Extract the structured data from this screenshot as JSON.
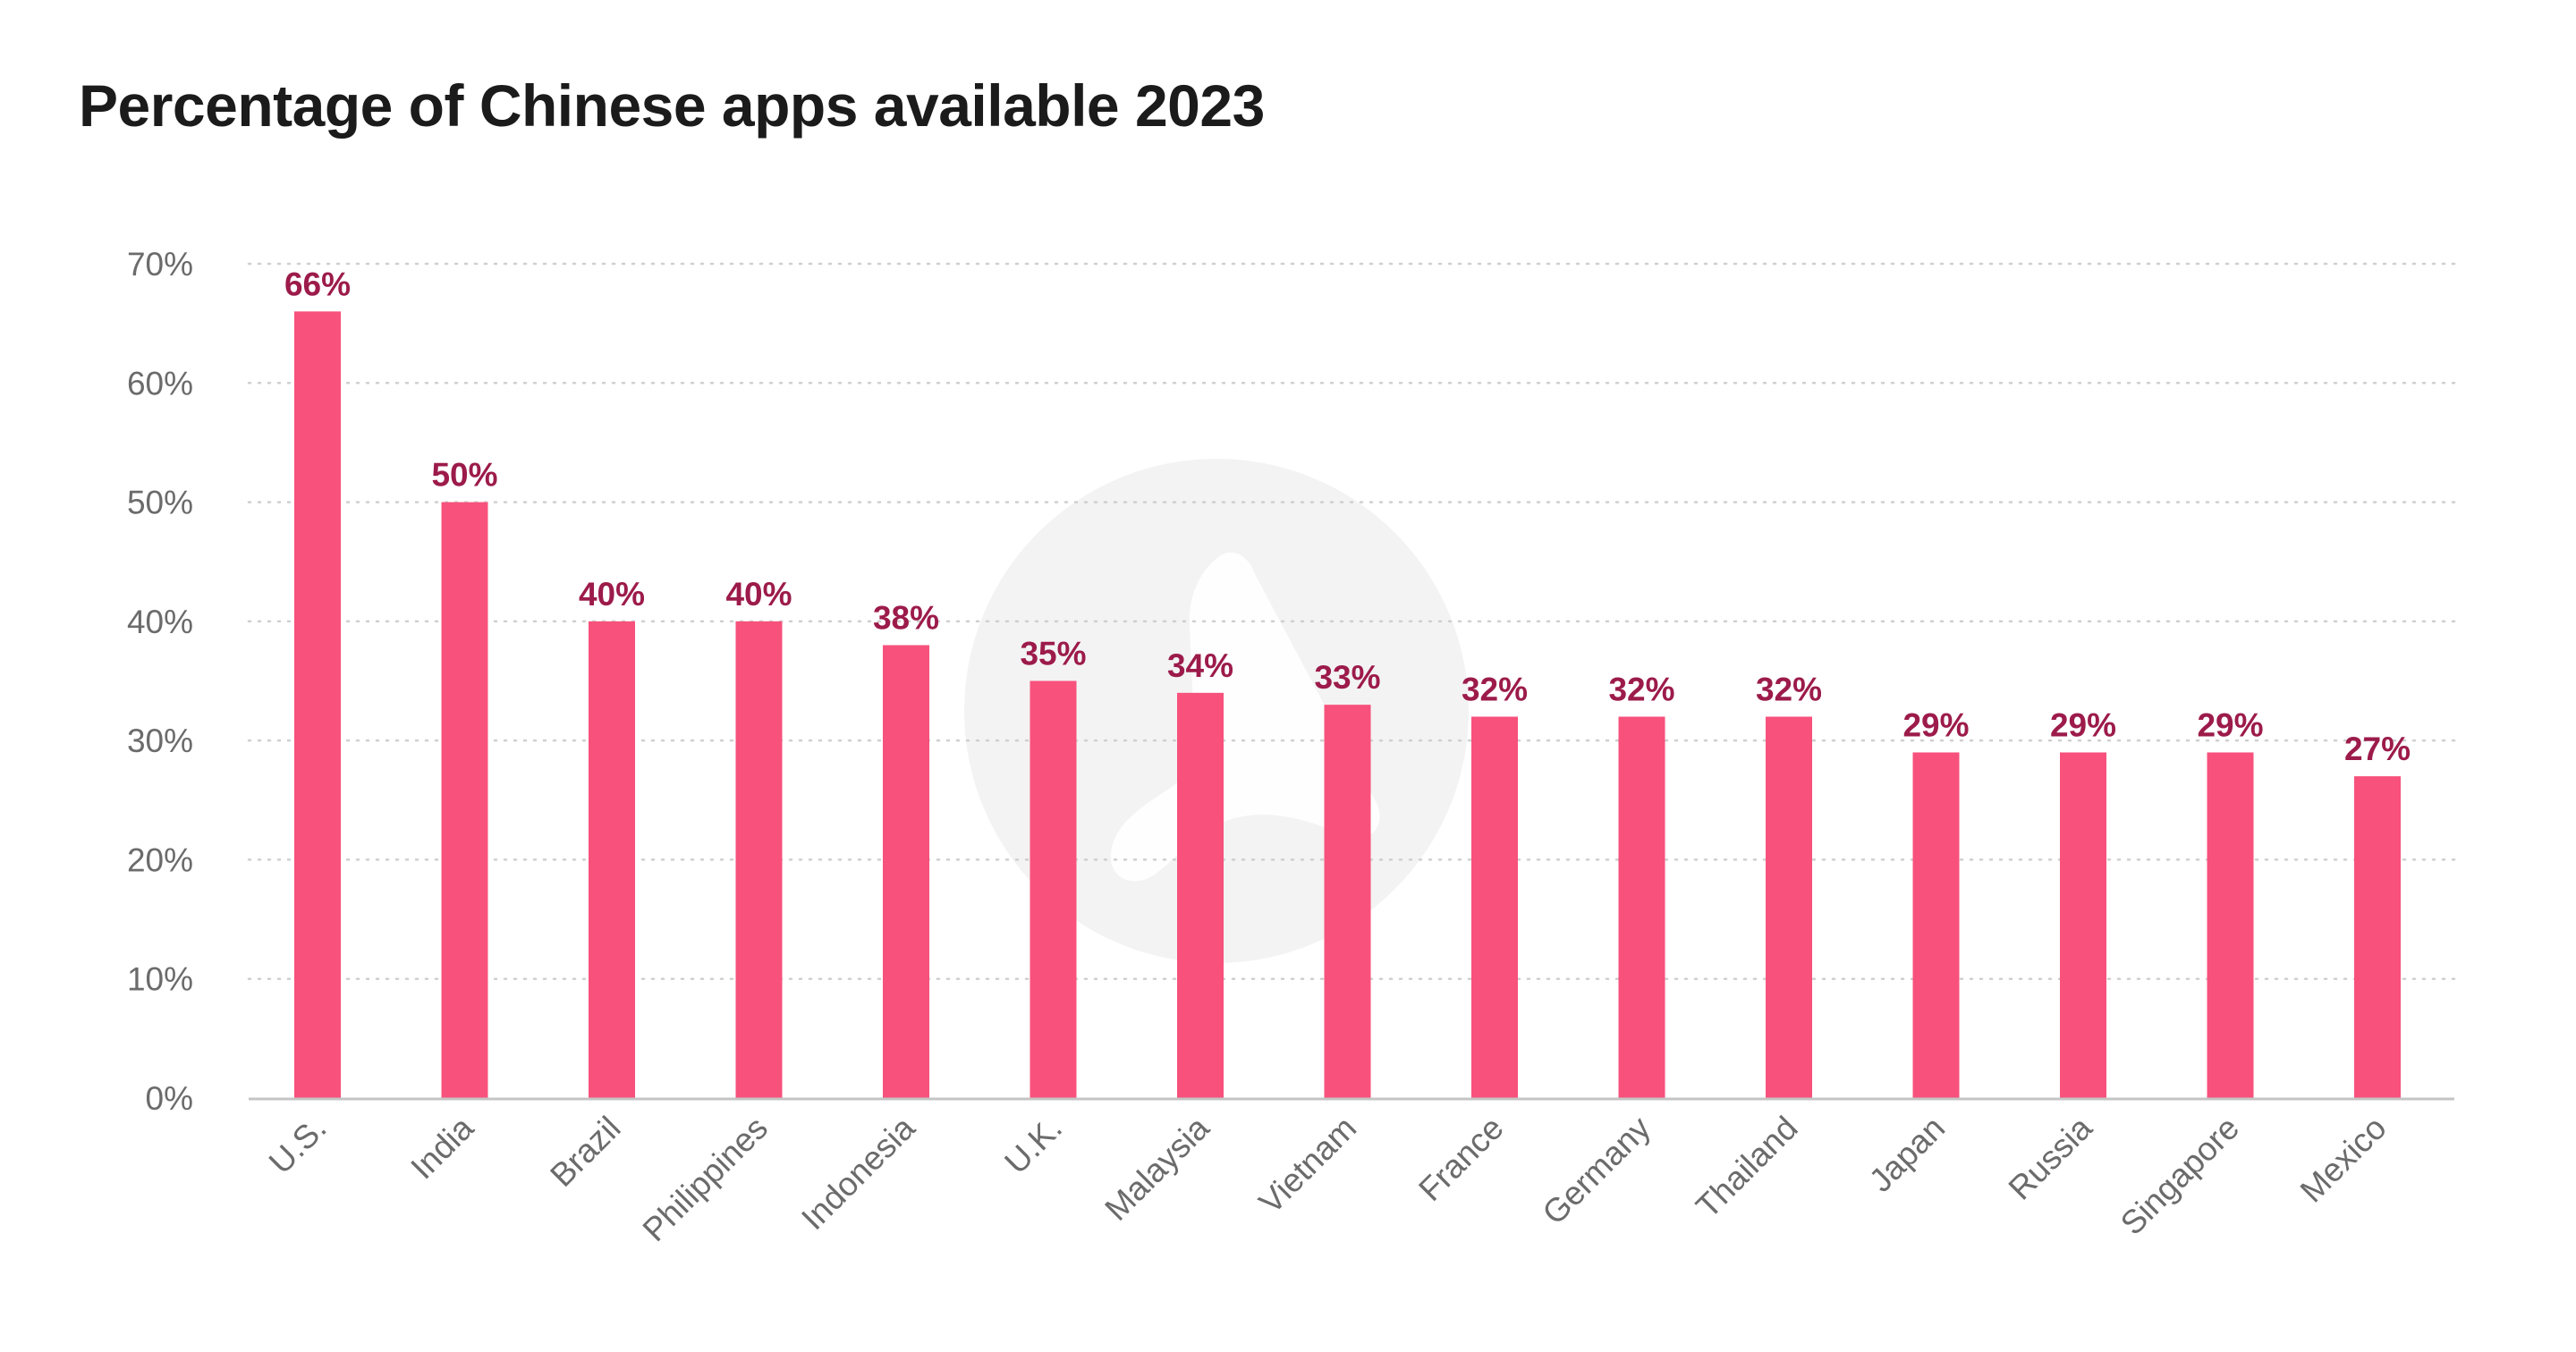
{
  "title": "Percentage of Chinese apps available 2023",
  "colors": {
    "bar": "#f7517c",
    "data_label": "#9c1b4a",
    "axis_text": "#6b6b6b",
    "grid": "#cfcfcf",
    "watermark": "#f3f3f3"
  },
  "watermark_icon": "logo-watermark-icon",
  "chart_data": {
    "type": "bar",
    "title": "Percentage of Chinese apps available 2023",
    "xlabel": "",
    "ylabel": "",
    "categories": [
      "U.S.",
      "India",
      "Brazil",
      "Philippines",
      "Indonesia",
      "U.K.",
      "Malaysia",
      "Vietnam",
      "France",
      "Germany",
      "Thailand",
      "Japan",
      "Russia",
      "Singapore",
      "Mexico"
    ],
    "values": [
      66,
      50,
      40,
      40,
      38,
      35,
      34,
      33,
      32,
      32,
      32,
      29,
      29,
      29,
      27
    ],
    "data_labels": [
      "66%",
      "50%",
      "40%",
      "40%",
      "38%",
      "35%",
      "34%",
      "33%",
      "32%",
      "32%",
      "32%",
      "29%",
      "29%",
      "29%",
      "27%"
    ],
    "yticks": [
      0,
      10,
      20,
      30,
      40,
      50,
      60,
      70
    ],
    "ytick_labels": [
      "0%",
      "10%",
      "20%",
      "30%",
      "40%",
      "50%",
      "60%",
      "70%"
    ],
    "ylim": [
      0,
      70
    ],
    "grid": true,
    "grid_style": "dotted"
  }
}
